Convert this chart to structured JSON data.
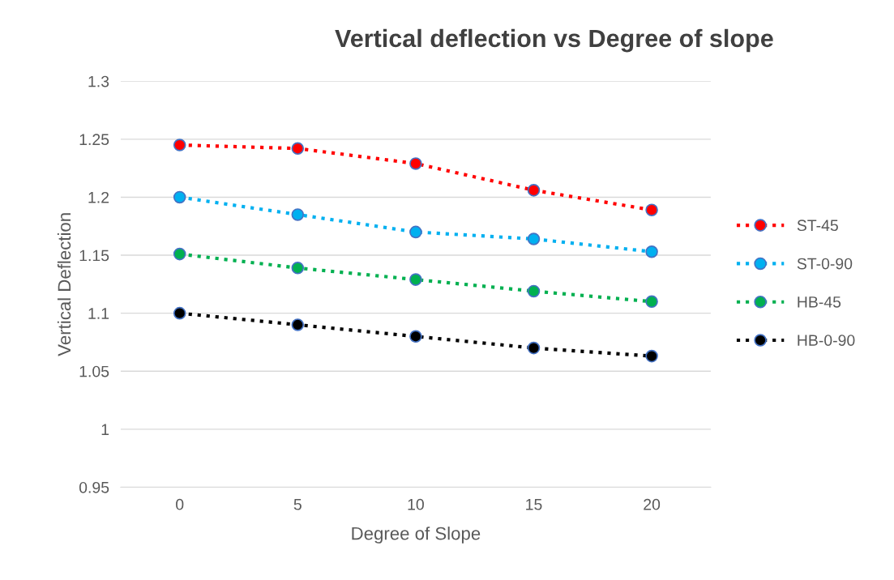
{
  "chart_data": {
    "type": "line",
    "title": "Vertical deflection vs Degree of slope",
    "xlabel": "Degree of Slope",
    "ylabel": "Vertical Deflection",
    "categories": [
      "0",
      "5",
      "10",
      "15",
      "20"
    ],
    "series": [
      {
        "name": "ST-45",
        "color": "#ff0000",
        "values": [
          1.245,
          1.242,
          1.229,
          1.206,
          1.189
        ]
      },
      {
        "name": "ST-0-90",
        "color": "#00b0f0",
        "values": [
          1.2,
          1.185,
          1.17,
          1.164,
          1.153
        ]
      },
      {
        "name": "HB-45",
        "color": "#00b050",
        "values": [
          1.151,
          1.139,
          1.129,
          1.119,
          1.11
        ]
      },
      {
        "name": "HB-0-90",
        "color": "#000000",
        "values": [
          1.1,
          1.09,
          1.08,
          1.07,
          1.063
        ]
      }
    ],
    "ylim": [
      0.95,
      1.3
    ],
    "yticks": [
      0.95,
      1,
      1.05,
      1.1,
      1.15,
      1.2,
      1.25,
      1.3
    ],
    "grid": "y",
    "legend": "right",
    "marker": "circle",
    "line_style": "dotted"
  }
}
